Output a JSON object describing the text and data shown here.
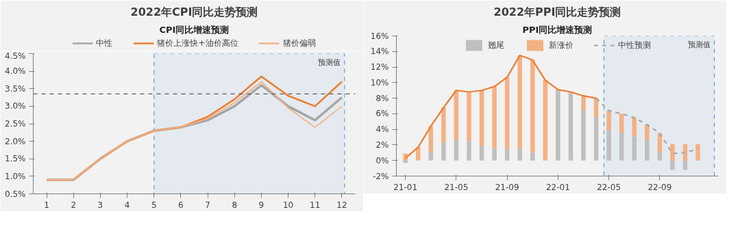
{
  "chart_data": [
    {
      "type": "line",
      "title": "2022年CPI同比走势预测",
      "subtitle": "CPI同比增速预测",
      "x": [
        1,
        2,
        3,
        4,
        5,
        6,
        7,
        8,
        9,
        10,
        11,
        12
      ],
      "xlim": [
        0.5,
        12.5
      ],
      "xticks": [
        1,
        2,
        3,
        4,
        5,
        6,
        7,
        8,
        9,
        10,
        11,
        12
      ],
      "ylim": [
        0.5,
        4.5
      ],
      "yticks": [
        {
          "value": 0.5,
          "label": "0.5%"
        },
        {
          "value": 1.0,
          "label": "1.0%"
        },
        {
          "value": 1.5,
          "label": "1.5%"
        },
        {
          "value": 2.0,
          "label": "2.0%"
        },
        {
          "value": 2.5,
          "label": "2.5%"
        },
        {
          "value": 3.0,
          "label": "3.0%"
        },
        {
          "value": 3.5,
          "label": "3.5%"
        },
        {
          "value": 4.0,
          "label": "4.0%"
        },
        {
          "value": 4.5,
          "label": "4.5%"
        }
      ],
      "legend": "top",
      "series": [
        {
          "name": "中性",
          "color": "#a6a6a6",
          "values": [
            0.9,
            0.9,
            1.5,
            2.0,
            2.3,
            2.4,
            2.6,
            3.0,
            3.6,
            3.0,
            2.6,
            3.25
          ]
        },
        {
          "name": "猪价上涨快+油价高位",
          "color": "#ed7d31",
          "values": [
            0.9,
            0.9,
            1.5,
            2.0,
            2.3,
            2.4,
            2.7,
            3.2,
            3.85,
            3.3,
            3.0,
            3.7
          ]
        },
        {
          "name": "猪价偏弱",
          "color": "#f4b183",
          "values": [
            0.9,
            0.9,
            1.5,
            2.0,
            2.3,
            2.4,
            2.65,
            3.1,
            3.7,
            2.95,
            2.4,
            3.0
          ]
        }
      ],
      "ref_lines": [
        {
          "axis": "y",
          "value": 3.35,
          "color": "#595959",
          "line_style": "dashed"
        }
      ],
      "bands": [
        {
          "axis": "x",
          "from": 5,
          "to": 12.1,
          "label": "预测值",
          "color": "#e4eaf0"
        }
      ]
    },
    {
      "type": "bar",
      "title": "2022年PPI同比走势预测",
      "subtitle": "PPI同比增速预测",
      "stacked": true,
      "x": [
        "2021-01",
        "2021-02",
        "2021-03",
        "2021-04",
        "2021-05",
        "2021-06",
        "2021-07",
        "2021-08",
        "2021-09",
        "2021-10",
        "2021-11",
        "2021-12",
        "2022-01",
        "2022-02",
        "2022-03",
        "2022-04",
        "2022-05",
        "2022-06",
        "2022-07",
        "2022-08",
        "2022-09",
        "2022-10",
        "2022-11",
        "2022-12"
      ],
      "xlim": [
        "2020-12-10",
        "2023-01-20"
      ],
      "xticks": [
        {
          "value": "2021-01",
          "label": "21-01"
        },
        {
          "value": "2021-05",
          "label": "21-05"
        },
        {
          "value": "2021-09",
          "label": "21-09"
        },
        {
          "value": "2022-01",
          "label": "22-01"
        },
        {
          "value": "2022-05",
          "label": "22-05"
        },
        {
          "value": "2022-09",
          "label": "22-09"
        }
      ],
      "ylim": [
        -2,
        16
      ],
      "yticks": [
        {
          "value": -2,
          "label": "-2%"
        },
        {
          "value": 0,
          "label": "0%"
        },
        {
          "value": 2,
          "label": "2%"
        },
        {
          "value": 4,
          "label": "4%"
        },
        {
          "value": 6,
          "label": "6%"
        },
        {
          "value": 8,
          "label": "8%"
        },
        {
          "value": 10,
          "label": "10%"
        },
        {
          "value": 12,
          "label": "12%"
        },
        {
          "value": 14,
          "label": "14%"
        },
        {
          "value": 16,
          "label": "16%"
        }
      ],
      "legend": "top",
      "series": [
        {
          "name": "翘尾",
          "type": "bar",
          "color": "#bfbfbf",
          "values": [
            -0.3,
            0.0,
            1.1,
            2.3,
            2.7,
            2.5,
            1.9,
            1.6,
            1.5,
            1.5,
            1.0,
            0.0,
            9.1,
            8.6,
            6.5,
            5.6,
            3.9,
            3.6,
            3.1,
            2.6,
            1.1,
            -1.2,
            -1.2,
            0.0
          ]
        },
        {
          "name": "新涨价",
          "type": "bar",
          "color": "#f4b183",
          "values": [
            0.9,
            1.7,
            3.3,
            4.5,
            6.3,
            6.3,
            7.1,
            7.9,
            9.2,
            12.0,
            11.9,
            10.3,
            0.0,
            0.2,
            1.8,
            2.4,
            2.5,
            2.4,
            2.4,
            2.0,
            2.4,
            2.1,
            2.1,
            2.1
          ]
        },
        {
          "type": "line",
          "color": "#ed7d31",
          "values": [
            0.3,
            1.7,
            4.4,
            6.8,
            9.0,
            8.8,
            9.0,
            9.5,
            10.7,
            13.5,
            12.9,
            10.3,
            9.1,
            8.8,
            8.3,
            8.0,
            null,
            null,
            null,
            null,
            null,
            null,
            null,
            null
          ]
        },
        {
          "name": "中性预测",
          "type": "line",
          "line_style": "dashed",
          "color": "#a6a6a6",
          "values": [
            null,
            null,
            null,
            null,
            null,
            null,
            null,
            null,
            null,
            null,
            null,
            null,
            null,
            null,
            null,
            8.0,
            6.4,
            6.0,
            5.5,
            4.6,
            3.5,
            0.9,
            1.0,
            1.5
          ]
        }
      ],
      "bands": [
        {
          "axis": "x",
          "from": "2022-04-20",
          "to": "2023-01-10",
          "label": "预测值",
          "color": "#e4eaf0"
        }
      ]
    }
  ]
}
